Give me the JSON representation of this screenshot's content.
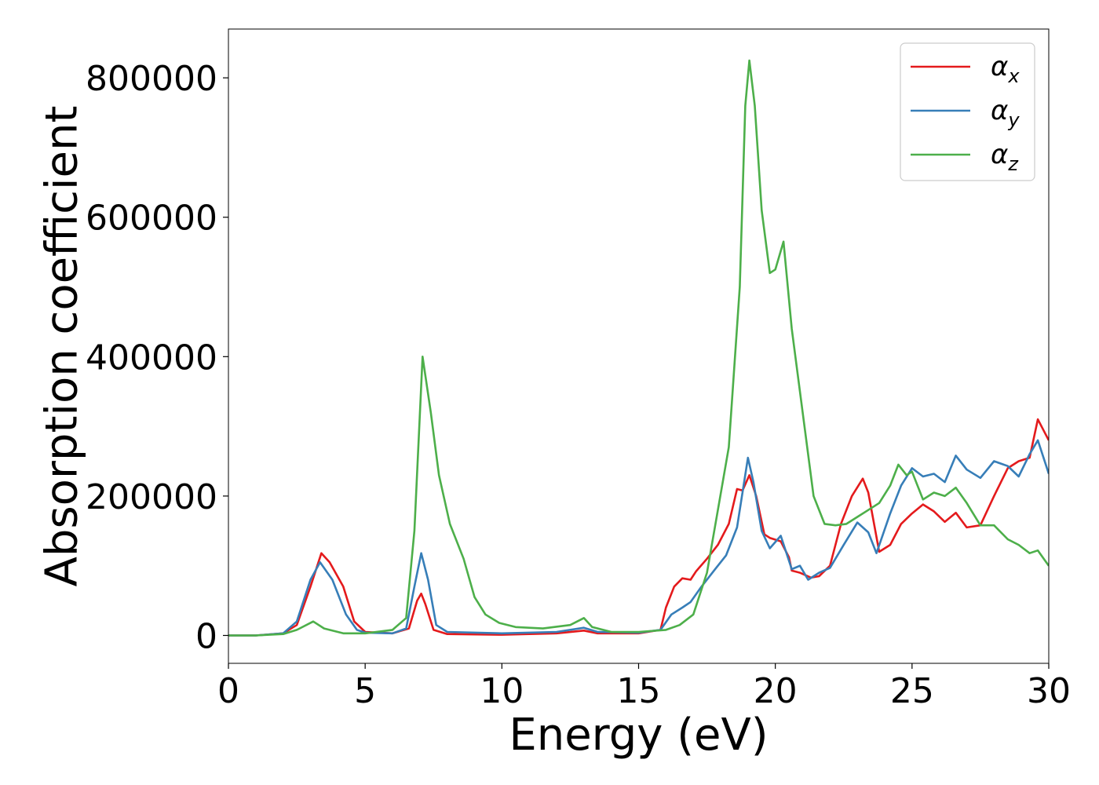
{
  "chart_data": {
    "type": "line",
    "xlabel": "Energy (eV)",
    "ylabel": "Absorption coefficient",
    "xlim": [
      0,
      30
    ],
    "ylim": [
      -40000,
      870000
    ],
    "xticks": [
      0,
      5,
      10,
      15,
      20,
      25,
      30
    ],
    "yticks": [
      0,
      200000,
      400000,
      600000,
      800000
    ],
    "grid": false,
    "legend_position": "top-right",
    "series": [
      {
        "name": "α",
        "subscript": "x",
        "color": "#e41a1c",
        "points": [
          [
            0,
            0
          ],
          [
            1,
            0
          ],
          [
            2,
            3000
          ],
          [
            2.5,
            15000
          ],
          [
            3,
            70000
          ],
          [
            3.4,
            118000
          ],
          [
            3.7,
            105000
          ],
          [
            4.2,
            70000
          ],
          [
            4.6,
            20000
          ],
          [
            5,
            5000
          ],
          [
            6,
            3000
          ],
          [
            6.6,
            10000
          ],
          [
            6.9,
            50000
          ],
          [
            7.05,
            60000
          ],
          [
            7.2,
            45000
          ],
          [
            7.5,
            8000
          ],
          [
            8,
            2000
          ],
          [
            10,
            1000
          ],
          [
            12,
            3000
          ],
          [
            13,
            7000
          ],
          [
            13.5,
            3000
          ],
          [
            15,
            3000
          ],
          [
            15.8,
            8000
          ],
          [
            16,
            40000
          ],
          [
            16.3,
            70000
          ],
          [
            16.6,
            82000
          ],
          [
            16.9,
            80000
          ],
          [
            17.1,
            92000
          ],
          [
            17.5,
            110000
          ],
          [
            17.9,
            130000
          ],
          [
            18.3,
            160000
          ],
          [
            18.6,
            210000
          ],
          [
            18.8,
            208000
          ],
          [
            19.05,
            230000
          ],
          [
            19.3,
            200000
          ],
          [
            19.6,
            145000
          ],
          [
            19.8,
            140000
          ],
          [
            20.2,
            135000
          ],
          [
            20.5,
            112000
          ],
          [
            20.6,
            93000
          ],
          [
            20.9,
            90000
          ],
          [
            21.3,
            83000
          ],
          [
            21.6,
            85000
          ],
          [
            22,
            100000
          ],
          [
            22.4,
            160000
          ],
          [
            22.8,
            200000
          ],
          [
            23.2,
            225000
          ],
          [
            23.4,
            205000
          ],
          [
            23.8,
            120000
          ],
          [
            24.2,
            130000
          ],
          [
            24.6,
            160000
          ],
          [
            25,
            175000
          ],
          [
            25.4,
            188000
          ],
          [
            25.8,
            178000
          ],
          [
            26.2,
            163000
          ],
          [
            26.6,
            176000
          ],
          [
            27,
            155000
          ],
          [
            27.5,
            158000
          ],
          [
            28,
            200000
          ],
          [
            28.5,
            240000
          ],
          [
            28.9,
            250000
          ],
          [
            29.3,
            255000
          ],
          [
            29.6,
            310000
          ],
          [
            30,
            280000
          ]
        ]
      },
      {
        "name": "α",
        "subscript": "y",
        "color": "#377eb8",
        "points": [
          [
            0,
            0
          ],
          [
            1,
            0
          ],
          [
            2,
            3000
          ],
          [
            2.5,
            20000
          ],
          [
            3,
            80000
          ],
          [
            3.35,
            105000
          ],
          [
            3.8,
            80000
          ],
          [
            4.3,
            30000
          ],
          [
            4.7,
            8000
          ],
          [
            5,
            4000
          ],
          [
            6,
            3000
          ],
          [
            6.5,
            10000
          ],
          [
            6.8,
            70000
          ],
          [
            7.05,
            118000
          ],
          [
            7.3,
            80000
          ],
          [
            7.6,
            15000
          ],
          [
            8,
            5000
          ],
          [
            10,
            3000
          ],
          [
            12,
            5000
          ],
          [
            13,
            11000
          ],
          [
            13.5,
            5000
          ],
          [
            15,
            4000
          ],
          [
            15.8,
            8000
          ],
          [
            16.2,
            30000
          ],
          [
            16.6,
            40000
          ],
          [
            16.9,
            48000
          ],
          [
            17.3,
            70000
          ],
          [
            17.8,
            95000
          ],
          [
            18.2,
            115000
          ],
          [
            18.6,
            155000
          ],
          [
            19,
            255000
          ],
          [
            19.2,
            220000
          ],
          [
            19.5,
            150000
          ],
          [
            19.8,
            125000
          ],
          [
            20.2,
            143000
          ],
          [
            20.6,
            95000
          ],
          [
            20.9,
            100000
          ],
          [
            21.2,
            80000
          ],
          [
            21.6,
            90000
          ],
          [
            22,
            97000
          ],
          [
            22.5,
            130000
          ],
          [
            23,
            162000
          ],
          [
            23.4,
            148000
          ],
          [
            23.7,
            118000
          ],
          [
            24.2,
            175000
          ],
          [
            24.6,
            215000
          ],
          [
            25,
            240000
          ],
          [
            25.4,
            228000
          ],
          [
            25.8,
            232000
          ],
          [
            26.2,
            220000
          ],
          [
            26.6,
            258000
          ],
          [
            27,
            238000
          ],
          [
            27.5,
            226000
          ],
          [
            28,
            250000
          ],
          [
            28.5,
            243000
          ],
          [
            28.9,
            228000
          ],
          [
            29.3,
            260000
          ],
          [
            29.6,
            280000
          ],
          [
            30,
            232000
          ]
        ]
      },
      {
        "name": "α",
        "subscript": "z",
        "color": "#4daf4a",
        "points": [
          [
            0,
            0
          ],
          [
            1,
            0
          ],
          [
            2,
            2000
          ],
          [
            2.5,
            8000
          ],
          [
            3.1,
            20000
          ],
          [
            3.5,
            10000
          ],
          [
            4.2,
            3000
          ],
          [
            5,
            3000
          ],
          [
            6,
            8000
          ],
          [
            6.5,
            25000
          ],
          [
            6.8,
            150000
          ],
          [
            7.1,
            400000
          ],
          [
            7.4,
            320000
          ],
          [
            7.7,
            230000
          ],
          [
            8.1,
            160000
          ],
          [
            8.6,
            110000
          ],
          [
            9,
            55000
          ],
          [
            9.4,
            30000
          ],
          [
            9.9,
            18000
          ],
          [
            10.5,
            12000
          ],
          [
            11.5,
            10000
          ],
          [
            12.5,
            15000
          ],
          [
            13,
            25000
          ],
          [
            13.3,
            12000
          ],
          [
            14,
            5000
          ],
          [
            15,
            5000
          ],
          [
            16,
            8000
          ],
          [
            16.5,
            15000
          ],
          [
            17,
            30000
          ],
          [
            17.5,
            90000
          ],
          [
            17.9,
            180000
          ],
          [
            18.3,
            270000
          ],
          [
            18.7,
            500000
          ],
          [
            18.9,
            760000
          ],
          [
            19.05,
            825000
          ],
          [
            19.25,
            760000
          ],
          [
            19.5,
            610000
          ],
          [
            19.8,
            520000
          ],
          [
            20,
            525000
          ],
          [
            20.3,
            565000
          ],
          [
            20.6,
            440000
          ],
          [
            21,
            320000
          ],
          [
            21.4,
            200000
          ],
          [
            21.8,
            160000
          ],
          [
            22.2,
            158000
          ],
          [
            22.6,
            160000
          ],
          [
            23,
            170000
          ],
          [
            23.4,
            180000
          ],
          [
            23.8,
            190000
          ],
          [
            24.2,
            215000
          ],
          [
            24.5,
            245000
          ],
          [
            24.8,
            230000
          ],
          [
            25,
            235000
          ],
          [
            25.4,
            195000
          ],
          [
            25.8,
            205000
          ],
          [
            26.2,
            200000
          ],
          [
            26.6,
            212000
          ],
          [
            27,
            190000
          ],
          [
            27.5,
            158000
          ],
          [
            28,
            158000
          ],
          [
            28.5,
            138000
          ],
          [
            28.9,
            130000
          ],
          [
            29.3,
            118000
          ],
          [
            29.6,
            122000
          ],
          [
            30,
            100000
          ]
        ]
      }
    ]
  }
}
